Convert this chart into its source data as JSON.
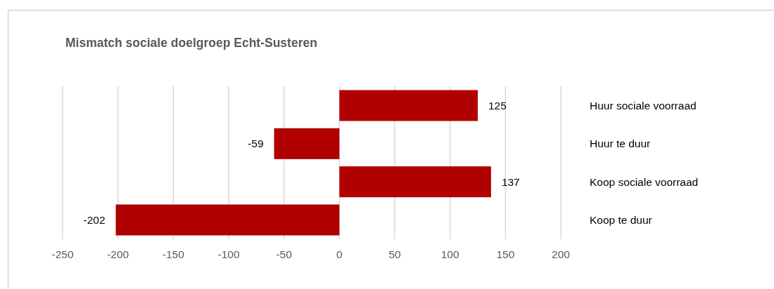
{
  "chart_data": {
    "type": "bar",
    "orientation": "horizontal",
    "title": "Mismatch sociale doelgroep Echt-Susteren",
    "categories": [
      "Huur sociale voorraad",
      "Huur te duur",
      "Koop sociale voorraad",
      "Koop te duur"
    ],
    "values": [
      125,
      -59,
      137,
      -202
    ],
    "color": "#b00000",
    "xlim": [
      -250,
      200
    ],
    "xticks": [
      -250,
      -200,
      -150,
      -100,
      -50,
      0,
      50,
      100,
      150,
      200
    ],
    "grid": "x",
    "data_labels": true
  }
}
